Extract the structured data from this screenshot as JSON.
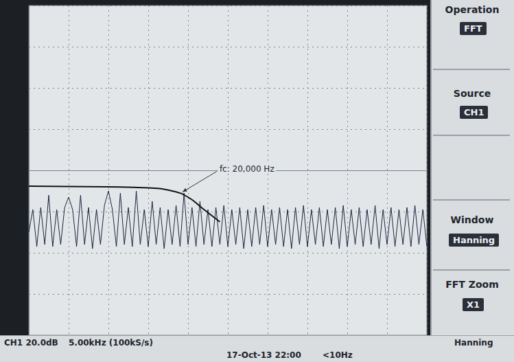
{
  "chart_data": {
    "type": "line",
    "xlim": [
      0,
      50000
    ],
    "xticks": [
      0,
      5000,
      10000,
      15000,
      20000,
      25000,
      30000,
      35000,
      40000,
      45000,
      50000
    ],
    "ylim": [
      -80,
      80
    ],
    "yticks": [
      -80,
      -60,
      -40,
      -20,
      0,
      20,
      40,
      60,
      80
    ],
    "grid": true,
    "tick_labels": false,
    "series": [
      {
        "color": "#1b2340",
        "marker": "none",
        "line_style": "solid",
        "x": [
          0,
          500,
          1000,
          1500,
          2000,
          2500,
          3000,
          3500,
          4000,
          4500,
          5000,
          5500,
          6000,
          6500,
          7000,
          7500,
          8000,
          8500,
          9000,
          9500,
          10000,
          10500,
          11000,
          11500,
          12000,
          12500,
          13000,
          13500,
          14000,
          14500,
          15000,
          15500,
          16000,
          16500,
          17000,
          17500,
          18000,
          18500,
          19000,
          19500,
          20000,
          20500,
          21000,
          21500,
          22000,
          22500,
          23000,
          23500,
          24000,
          24500,
          25000,
          25500,
          26000,
          26500,
          27000,
          27500,
          28000,
          28500,
          29000,
          29500,
          30000,
          30500,
          31000,
          31500,
          32000,
          32500,
          33000,
          33500,
          34000,
          34500,
          35000,
          35500,
          36000,
          36500,
          37000,
          37500,
          38000,
          38500,
          39000,
          39500,
          40000,
          40500,
          41000,
          41500,
          42000,
          42500,
          43000,
          43500,
          44000,
          44500,
          45000,
          45500,
          46000,
          46500,
          47000,
          47500,
          48000,
          48500,
          49000,
          49500,
          50000
        ],
        "values": [
          -30,
          -19,
          -37,
          -18,
          -36,
          -12,
          -37,
          -19,
          -36,
          -18,
          -13,
          -19,
          -37,
          -12,
          -36,
          -18,
          -38,
          -19,
          -36,
          -17,
          -10,
          -19,
          -37,
          -11,
          -36,
          -18,
          -37,
          -10,
          -36,
          -19,
          -37,
          -15,
          -36,
          -18,
          -38,
          -19,
          -36,
          -17,
          -37,
          -11,
          -36,
          -18,
          -37,
          -15,
          -36,
          -19,
          -37,
          -18,
          -36,
          -17,
          -37,
          -19,
          -36,
          -18,
          -38,
          -19,
          -37,
          -18,
          -36,
          -17,
          -37,
          -19,
          -36,
          -18,
          -37,
          -19,
          -38,
          -18,
          -36,
          -17,
          -37,
          -19,
          -36,
          -18,
          -37,
          -19,
          -36,
          -18,
          -38,
          -17,
          -37,
          -19,
          -36,
          -18,
          -37,
          -19,
          -36,
          -17,
          -38,
          -19,
          -36,
          -18,
          -37,
          -19,
          -36,
          -18,
          -37,
          -17,
          -36,
          -19,
          -37
        ]
      },
      {
        "color": "#111111",
        "marker": "none",
        "line_style": "solid",
        "x": [
          0,
          10000,
          15000,
          18000,
          20000,
          22000,
          24000
        ],
        "values": [
          -7.7,
          -8,
          -8.5,
          -10,
          -13,
          -19,
          -25
        ]
      }
    ],
    "annotations": [
      {
        "text": "fc: 20,000 Hz",
        "x": 19300,
        "y": -10.5
      }
    ]
  },
  "menu": [
    {
      "label": "Operation",
      "value": "FFT"
    },
    {
      "label": "Source",
      "value": "CH1"
    },
    {
      "label": "Window",
      "value": "Hanning"
    },
    {
      "label": "FFT Zoom",
      "value": "X1"
    }
  ],
  "status": [
    "CH1 20.0dB",
    "5.00kHz (100kS/s)",
    "Hanning",
    "17-Oct-13 22:00",
    "<10Hz"
  ]
}
